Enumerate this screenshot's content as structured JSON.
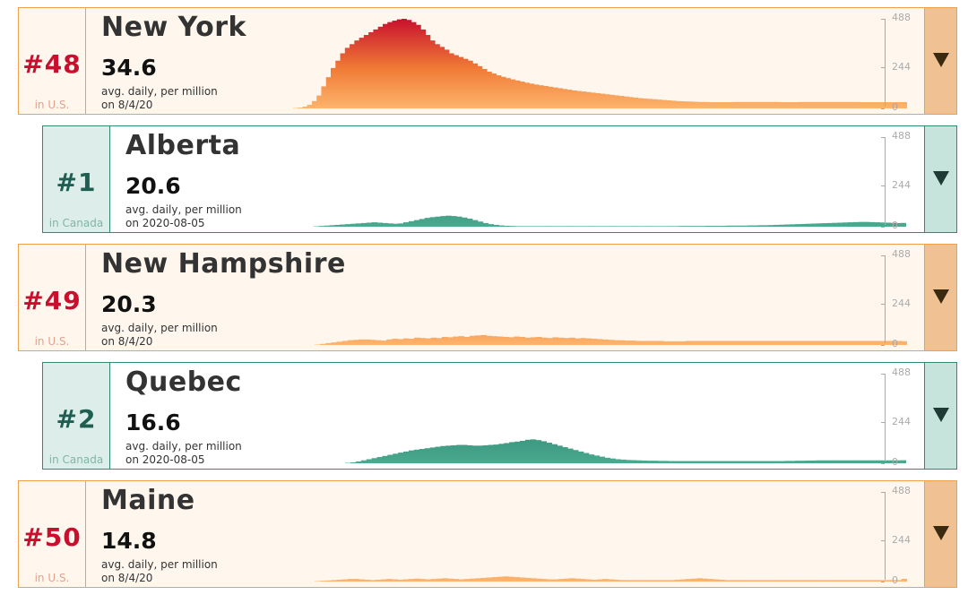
{
  "axis": {
    "ticks": [
      "488",
      "244",
      "0"
    ],
    "max": 488,
    "mid": 244,
    "min": 0
  },
  "colors": {
    "us_border": "#f0a04b",
    "us_low": "#fdb46c",
    "us_mid": "#f07a35",
    "us_high": "#c8102e",
    "ca_border": "#2f8c74",
    "ca_low": "#4aa98f",
    "ca_high": "#1a6b58"
  },
  "cards": [
    {
      "rank": "#48",
      "country_label": "in U.S.",
      "name": "New York",
      "value": "34.6",
      "unit_label": "avg. daily, per million",
      "date_label": "on 8/4/20",
      "type": "us"
    },
    {
      "rank": "#1",
      "country_label": "in Canada",
      "name": "Alberta",
      "value": "20.6",
      "unit_label": "avg. daily, per million",
      "date_label": "on 2020-08-05",
      "type": "ca"
    },
    {
      "rank": "#49",
      "country_label": "in U.S.",
      "name": "New Hampshire",
      "value": "20.3",
      "unit_label": "avg. daily, per million",
      "date_label": "on 8/4/20",
      "type": "us"
    },
    {
      "rank": "#2",
      "country_label": "in Canada",
      "name": "Quebec",
      "value": "16.6",
      "unit_label": "avg. daily, per million",
      "date_label": "on 2020-08-05",
      "type": "ca"
    },
    {
      "rank": "#50",
      "country_label": "in U.S.",
      "name": "Maine",
      "value": "14.8",
      "unit_label": "avg. daily, per million",
      "date_label": "on 8/4/20",
      "type": "us"
    }
  ],
  "chart_data": [
    {
      "type": "area",
      "title": "New York",
      "ylim": [
        0,
        488
      ],
      "yticks": [
        0,
        244,
        488
      ],
      "series": [
        {
          "values": [
            0,
            0,
            0,
            0,
            0,
            0,
            0,
            0,
            0,
            0,
            0,
            0,
            0,
            0,
            0,
            0,
            0,
            0,
            0,
            0,
            0,
            0,
            0,
            0,
            0,
            0,
            0,
            0,
            0,
            0,
            0,
            0,
            0,
            0,
            0,
            0,
            0,
            0,
            0,
            0,
            2,
            4,
            10,
            20,
            40,
            70,
            120,
            170,
            220,
            260,
            300,
            330,
            350,
            370,
            385,
            400,
            415,
            430,
            445,
            460,
            470,
            478,
            485,
            488,
            482,
            470,
            455,
            430,
            400,
            370,
            350,
            335,
            320,
            300,
            290,
            280,
            270,
            260,
            245,
            230,
            215,
            200,
            190,
            180,
            172,
            165,
            158,
            152,
            146,
            140,
            135,
            130,
            126,
            122,
            118,
            114,
            110,
            106,
            102,
            98,
            95,
            92,
            89,
            86,
            83,
            80,
            77,
            74,
            71,
            68,
            65,
            62,
            59,
            56,
            54,
            52,
            50,
            48,
            46,
            44,
            42,
            40,
            39,
            38,
            37,
            36,
            35,
            35,
            34,
            34,
            34,
            34,
            34,
            35,
            35,
            35,
            35,
            35,
            35,
            35,
            35,
            35,
            35,
            34,
            34,
            34,
            34,
            35,
            35,
            35,
            35,
            35,
            35,
            35,
            35,
            35,
            35,
            35,
            35,
            35,
            34,
            34,
            34,
            34,
            34,
            34,
            34,
            34,
            34,
            34.6
          ]
        }
      ]
    },
    {
      "type": "area",
      "title": "Alberta",
      "ylim": [
        0,
        488
      ],
      "yticks": [
        0,
        244,
        488
      ],
      "series": [
        {
          "values": [
            0,
            0,
            0,
            0,
            0,
            0,
            0,
            0,
            0,
            0,
            0,
            0,
            0,
            0,
            0,
            0,
            0,
            0,
            0,
            0,
            0,
            0,
            0,
            0,
            0,
            0,
            0,
            0,
            0,
            0,
            0,
            0,
            0,
            0,
            0,
            2,
            4,
            6,
            8,
            10,
            12,
            14,
            16,
            18,
            20,
            22,
            24,
            22,
            20,
            18,
            16,
            18,
            24,
            30,
            36,
            42,
            48,
            52,
            55,
            58,
            60,
            58,
            55,
            50,
            44,
            36,
            28,
            20,
            14,
            10,
            7,
            5,
            4,
            3,
            3,
            3,
            3,
            3,
            3,
            3,
            3,
            3,
            3,
            3,
            3,
            3,
            3,
            3,
            3,
            3,
            3,
            3,
            3,
            3,
            3,
            3,
            3,
            3,
            3,
            3,
            3,
            3,
            3,
            3,
            4,
            4,
            4,
            4,
            4,
            5,
            5,
            5,
            5,
            6,
            6,
            6,
            6,
            7,
            7,
            8,
            8,
            9,
            10,
            11,
            12,
            13,
            14,
            15,
            16,
            17,
            18,
            19,
            20,
            21,
            22,
            23,
            24,
            25,
            26,
            26,
            25,
            24,
            23,
            22,
            21,
            20,
            20.6
          ]
        }
      ]
    },
    {
      "type": "area",
      "title": "New Hampshire",
      "ylim": [
        0,
        488
      ],
      "yticks": [
        0,
        244,
        488
      ],
      "series": [
        {
          "values": [
            0,
            0,
            0,
            0,
            0,
            0,
            0,
            0,
            0,
            0,
            0,
            0,
            0,
            0,
            0,
            0,
            0,
            0,
            0,
            0,
            0,
            0,
            0,
            0,
            0,
            0,
            0,
            0,
            0,
            0,
            0,
            0,
            0,
            0,
            0,
            0,
            0,
            0,
            2,
            6,
            10,
            14,
            18,
            22,
            26,
            28,
            30,
            30,
            28,
            26,
            24,
            30,
            34,
            32,
            36,
            34,
            40,
            38,
            36,
            40,
            38,
            44,
            42,
            46,
            48,
            44,
            50,
            52,
            54,
            50,
            48,
            46,
            44,
            42,
            46,
            44,
            40,
            42,
            44,
            40,
            38,
            42,
            40,
            38,
            40,
            36,
            38,
            36,
            34,
            32,
            30,
            28,
            26,
            26,
            24,
            24,
            22,
            22,
            22,
            22,
            22,
            20,
            20,
            20,
            20,
            22,
            22,
            22,
            22,
            22,
            22,
            22,
            22,
            22,
            22,
            22,
            22,
            22,
            22,
            22,
            22,
            22,
            22,
            22,
            22,
            22,
            22,
            22,
            22,
            22,
            22,
            22,
            22,
            22,
            22,
            22,
            22,
            22,
            22,
            22,
            22,
            22,
            22,
            22,
            20.3
          ]
        }
      ]
    },
    {
      "type": "area",
      "title": "Quebec",
      "ylim": [
        0,
        488
      ],
      "yticks": [
        0,
        244,
        488
      ],
      "series": [
        {
          "values": [
            0,
            0,
            0,
            0,
            0,
            0,
            0,
            0,
            0,
            0,
            0,
            0,
            0,
            0,
            0,
            0,
            0,
            0,
            0,
            0,
            0,
            0,
            0,
            0,
            0,
            0,
            0,
            0,
            0,
            0,
            0,
            0,
            0,
            0,
            0,
            0,
            0,
            0,
            0,
            0,
            0,
            2,
            5,
            10,
            16,
            22,
            28,
            34,
            40,
            46,
            52,
            58,
            64,
            70,
            74,
            78,
            82,
            86,
            90,
            94,
            96,
            98,
            100,
            100,
            98,
            96,
            96,
            98,
            100,
            102,
            106,
            110,
            115,
            118,
            122,
            128,
            130,
            126,
            120,
            112,
            104,
            96,
            88,
            80,
            72,
            64,
            56,
            48,
            42,
            36,
            30,
            26,
            22,
            20,
            18,
            17,
            16,
            15,
            14,
            14,
            13,
            13,
            12,
            12,
            12,
            12,
            12,
            12,
            12,
            12,
            12,
            12,
            12,
            12,
            12,
            12,
            12,
            12,
            12,
            12,
            12,
            12,
            12,
            12,
            13,
            13,
            14,
            14,
            15,
            15,
            16,
            16,
            16,
            16,
            16,
            16,
            16,
            16,
            16,
            16,
            16,
            16,
            16,
            16,
            16,
            16,
            16.6
          ]
        }
      ]
    },
    {
      "type": "area",
      "title": "Maine",
      "ylim": [
        0,
        488
      ],
      "yticks": [
        0,
        244,
        488
      ],
      "series": [
        {
          "values": [
            0,
            0,
            0,
            0,
            0,
            0,
            0,
            0,
            0,
            0,
            0,
            0,
            0,
            0,
            0,
            0,
            0,
            0,
            0,
            0,
            0,
            0,
            0,
            0,
            0,
            0,
            0,
            0,
            0,
            0,
            0,
            0,
            0,
            0,
            0,
            0,
            0,
            0,
            2,
            4,
            6,
            8,
            10,
            12,
            14,
            14,
            12,
            10,
            8,
            10,
            12,
            14,
            12,
            10,
            12,
            14,
            16,
            14,
            12,
            14,
            16,
            18,
            16,
            14,
            12,
            14,
            16,
            18,
            20,
            22,
            24,
            26,
            28,
            26,
            24,
            22,
            20,
            18,
            16,
            14,
            12,
            12,
            14,
            16,
            18,
            16,
            14,
            12,
            10,
            12,
            14,
            12,
            10,
            8,
            8,
            8,
            8,
            8,
            8,
            8,
            8,
            8,
            8,
            10,
            12,
            14,
            16,
            18,
            16,
            14,
            12,
            10,
            8,
            8,
            8,
            8,
            8,
            8,
            8,
            8,
            8,
            8,
            8,
            8,
            8,
            8,
            8,
            8,
            8,
            8,
            8,
            8,
            8,
            8,
            8,
            8,
            8,
            8,
            8,
            8,
            8,
            8,
            8,
            8,
            14.8
          ]
        }
      ]
    }
  ]
}
